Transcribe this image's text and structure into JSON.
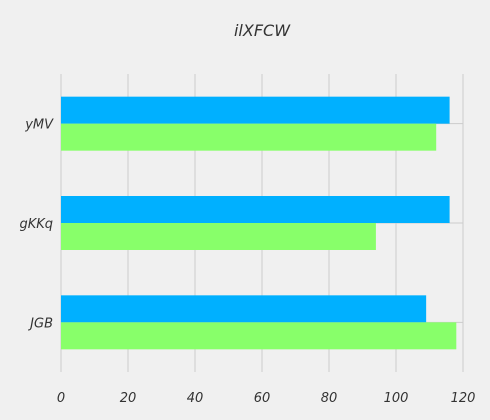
{
  "chart_data": {
    "type": "bar",
    "orientation": "horizontal",
    "title": "ilXFCW",
    "categories": [
      "yMV",
      "gKKq",
      "JGB"
    ],
    "series": [
      {
        "color": "#00b0ff",
        "values": [
          116,
          116,
          109
        ]
      },
      {
        "color": "#88ff6a",
        "values": [
          112,
          94,
          118
        ]
      }
    ],
    "xlim": [
      0,
      120
    ],
    "x_ticks": [
      0,
      20,
      40,
      60,
      80,
      100,
      120
    ],
    "grid": true,
    "legend": false,
    "background": "#f0f0f0",
    "grid_color": "#cccccc"
  }
}
